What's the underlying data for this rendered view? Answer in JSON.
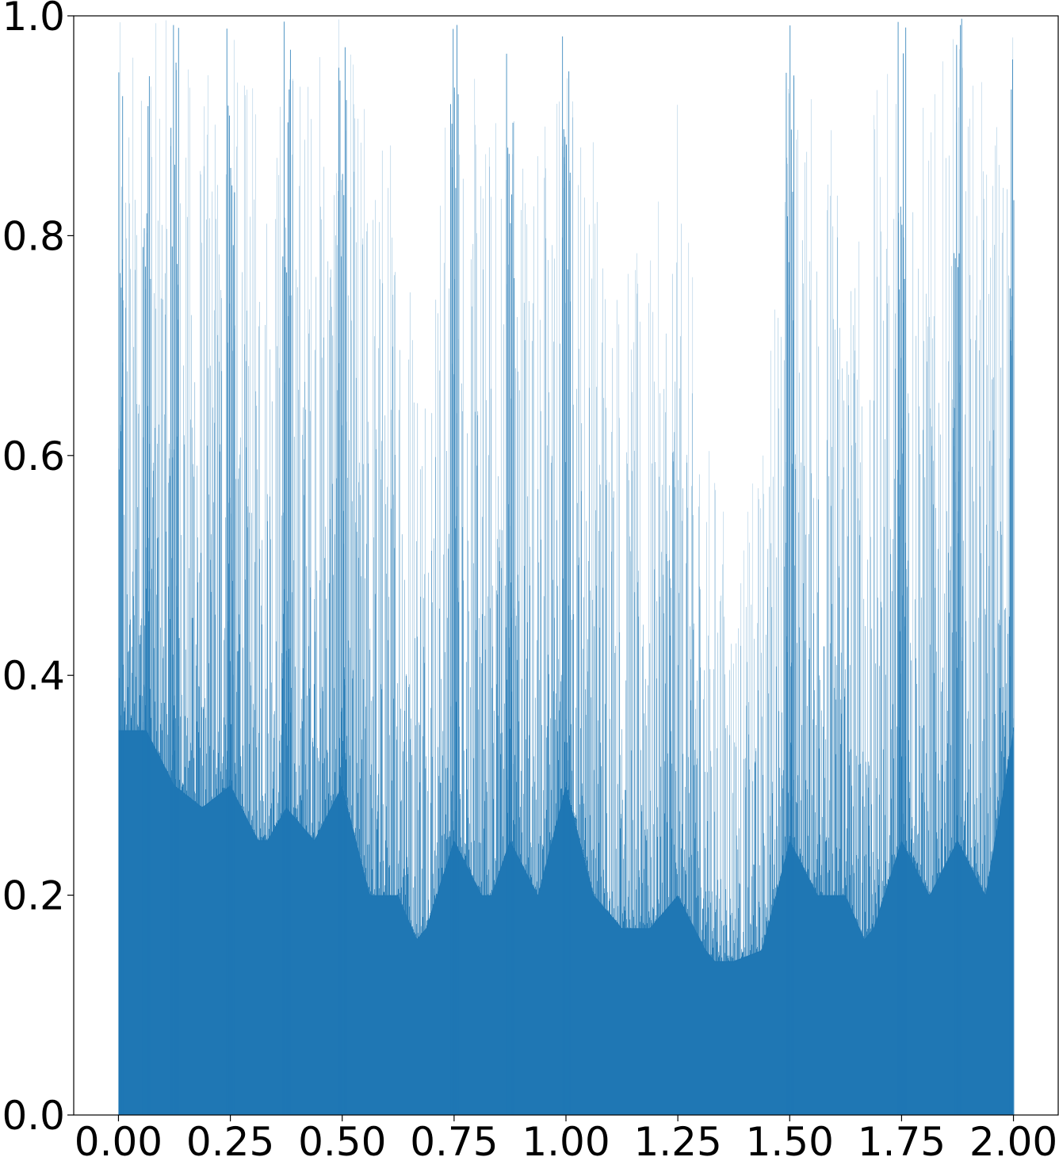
{
  "chart_data": {
    "type": "bar",
    "description_of_series": "dense histogram of bars between x=0 and x=2, many spikes, peaks at rational points",
    "xlim": [
      -0.1,
      2.1
    ],
    "ylim": [
      0.0,
      1.0
    ],
    "x_ticks": [
      0.0,
      0.25,
      0.5,
      0.75,
      1.0,
      1.25,
      1.5,
      1.75,
      2.0
    ],
    "x_tick_labels": [
      "0.00",
      "0.25",
      "0.50",
      "0.75",
      "1.00",
      "1.25",
      "1.50",
      "1.75",
      "2.00"
    ],
    "y_ticks": [
      0.0,
      0.2,
      0.4,
      0.6,
      0.8,
      1.0
    ],
    "y_tick_labels": [
      "0.0",
      "0.2",
      "0.4",
      "0.6",
      "0.8",
      "1.0"
    ],
    "envelope": {
      "x": [
        0.0,
        0.03,
        0.0625,
        0.125,
        0.1875,
        0.25,
        0.3125,
        0.333,
        0.375,
        0.4375,
        0.5,
        0.5625,
        0.625,
        0.667,
        0.6875,
        0.75,
        0.8125,
        0.833,
        0.875,
        0.9375,
        1.0,
        1.0625,
        1.125,
        1.1875,
        1.25,
        1.3125,
        1.333,
        1.375,
        1.4375,
        1.5,
        1.5625,
        1.625,
        1.667,
        1.6875,
        1.75,
        1.8125,
        1.875,
        1.9375,
        2.0
      ],
      "peak": [
        1.0,
        1.0,
        1.0,
        1.0,
        0.95,
        1.0,
        0.93,
        0.93,
        1.0,
        1.0,
        1.0,
        0.93,
        0.93,
        0.78,
        0.79,
        1.0,
        0.93,
        0.93,
        1.0,
        0.93,
        1.0,
        0.93,
        0.79,
        0.79,
        0.93,
        0.62,
        0.62,
        0.5,
        0.62,
        1.0,
        0.93,
        0.93,
        0.79,
        0.93,
        1.0,
        0.93,
        1.0,
        0.93,
        1.0
      ],
      "fill_floor": [
        0.35,
        0.35,
        0.35,
        0.3,
        0.28,
        0.3,
        0.25,
        0.25,
        0.28,
        0.25,
        0.3,
        0.2,
        0.2,
        0.16,
        0.17,
        0.25,
        0.2,
        0.2,
        0.25,
        0.2,
        0.3,
        0.2,
        0.17,
        0.17,
        0.2,
        0.15,
        0.14,
        0.14,
        0.15,
        0.25,
        0.2,
        0.2,
        0.16,
        0.17,
        0.25,
        0.2,
        0.25,
        0.2,
        0.35
      ]
    },
    "spikes_at_one": [
      0.0,
      0.0625,
      0.125,
      0.25,
      0.375,
      0.5,
      0.75,
      0.875,
      1.0,
      1.5,
      1.75,
      1.875,
      2.0
    ],
    "color": "#1f77b4",
    "title": "",
    "xlabel": "",
    "ylabel": "",
    "grid": false,
    "legend": false
  }
}
